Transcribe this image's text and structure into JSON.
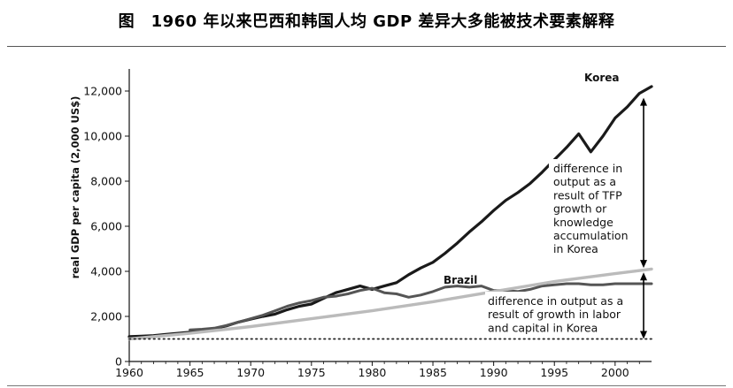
{
  "figure_title": "图　1960 年以来巴西和韩国人均 GDP 差异大多能被技术要素解释",
  "chart_data": {
    "type": "line",
    "title": "",
    "xlabel": "",
    "ylabel": "real GDP per capita (2,000 US$)",
    "xlim": [
      1960,
      2003
    ],
    "ylim": [
      0,
      12500
    ],
    "xticks": [
      1960,
      1965,
      1970,
      1975,
      1980,
      1985,
      1990,
      1995,
      2000
    ],
    "yticks": [
      0,
      2000,
      4000,
      6000,
      8000,
      10000,
      12000
    ],
    "ytick_labels": [
      "0",
      "2,000",
      "4,000",
      "6,000",
      "8,000",
      "10,000",
      "12,000"
    ],
    "grid": false,
    "series": [
      {
        "name": "Korea",
        "color": "#1a1a1a",
        "x": [
          1960,
          1961,
          1962,
          1963,
          1964,
          1965,
          1966,
          1967,
          1968,
          1969,
          1970,
          1971,
          1972,
          1973,
          1974,
          1975,
          1976,
          1977,
          1978,
          1979,
          1980,
          1981,
          1982,
          1983,
          1984,
          1985,
          1986,
          1987,
          1988,
          1989,
          1990,
          1991,
          1992,
          1993,
          1994,
          1995,
          1996,
          1997,
          1998,
          1999,
          2000,
          2001,
          2002,
          2003
        ],
        "y": [
          1100,
          1120,
          1150,
          1200,
          1250,
          1300,
          1380,
          1450,
          1580,
          1750,
          1880,
          2000,
          2100,
          2300,
          2450,
          2550,
          2800,
          3050,
          3200,
          3350,
          3200,
          3350,
          3500,
          3850,
          4150,
          4400,
          4800,
          5250,
          5750,
          6200,
          6700,
          7150,
          7500,
          7900,
          8400,
          8950,
          9500,
          10100,
          9300,
          10000,
          10800,
          11300,
          11900,
          12200
        ]
      },
      {
        "name": "Brazil",
        "color": "#555555",
        "x": [
          1965,
          1966,
          1967,
          1968,
          1969,
          1970,
          1971,
          1972,
          1973,
          1974,
          1975,
          1976,
          1977,
          1978,
          1979,
          1980,
          1981,
          1982,
          1983,
          1984,
          1985,
          1986,
          1987,
          1988,
          1989,
          1990,
          1991,
          1992,
          1993,
          1994,
          1995,
          1996,
          1997,
          1998,
          1999,
          2000,
          2001,
          2002,
          2003
        ],
        "y": [
          1400,
          1430,
          1480,
          1600,
          1750,
          1900,
          2050,
          2250,
          2450,
          2600,
          2700,
          2850,
          2900,
          3000,
          3150,
          3250,
          3050,
          3000,
          2850,
          2950,
          3100,
          3300,
          3350,
          3300,
          3350,
          3150,
          3150,
          3100,
          3200,
          3350,
          3400,
          3450,
          3450,
          3400,
          3400,
          3450,
          3450,
          3450,
          3450
        ]
      },
      {
        "name": "",
        "color": "#bbbbbb",
        "x": [
          1960,
          1965,
          1970,
          1975,
          1980,
          1985,
          1990,
          1995,
          2000,
          2003
        ],
        "y": [
          1000,
          1250,
          1550,
          1900,
          2250,
          2650,
          3100,
          3550,
          3900,
          4100
        ]
      },
      {
        "name": "",
        "style": "dotted",
        "color": "#222222",
        "x": [
          1960,
          2003
        ],
        "y": [
          1000,
          1000
        ]
      }
    ],
    "annotations": [
      {
        "text": "difference in output as a result of TFP growth or knowledge accumulation in Korea"
      },
      {
        "text": "difference in output as a result of growth in labor and capital in Korea"
      }
    ]
  },
  "texts": {
    "korea_label": "Korea",
    "brazil_label": "Brazil",
    "tfp_lines": [
      "difference in",
      "output as a",
      "result of TFP",
      "growth or",
      "knowledge",
      "accumulation",
      "in Korea"
    ],
    "labor_lines": [
      "difference in output as a",
      "result of growth in labor",
      "and capital in Korea"
    ]
  }
}
